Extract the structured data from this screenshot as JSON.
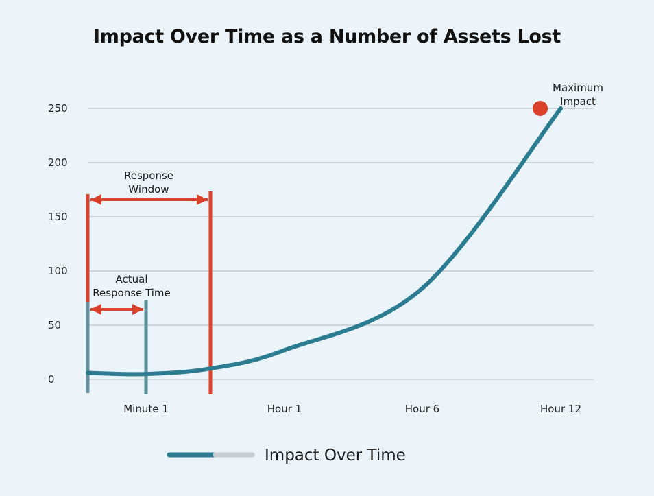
{
  "chart_data": {
    "type": "line",
    "title": "Impact Over Time as a Number of Assets Lost",
    "xlabel": "",
    "ylabel": "",
    "x_tick_labels": [
      "Minute 1",
      "Hour 1",
      "Hour 6",
      "Hour 12"
    ],
    "y_ticks": [
      0,
      50,
      100,
      150,
      200,
      250
    ],
    "y_tick_labels": [
      "0",
      "50",
      "100",
      "150",
      "200",
      "250"
    ],
    "ylim": [
      0,
      250
    ],
    "grid": true,
    "legend_position": "bottom-center",
    "series": [
      {
        "name": "Impact Over Time",
        "color": "#2b7c91",
        "values": [
          {
            "x": "start",
            "y": 6
          },
          {
            "x": "Minute 1",
            "y": 5
          },
          {
            "x": "end of response window",
            "y": 10
          },
          {
            "x": "Hour 1",
            "y": 27
          },
          {
            "x": "Hour 6",
            "y": 84
          },
          {
            "x": "Hour 12",
            "y": 250
          }
        ]
      }
    ],
    "annotations": {
      "response_window_label": "Response Window",
      "actual_response_label": "Actual Response Time",
      "max_label": "Maximum Impact"
    },
    "colors": {
      "accent": "#d9412b",
      "line": "#2b7c91",
      "legend_fade": "#c5cdd1",
      "grid": "#c4ccd1"
    }
  }
}
